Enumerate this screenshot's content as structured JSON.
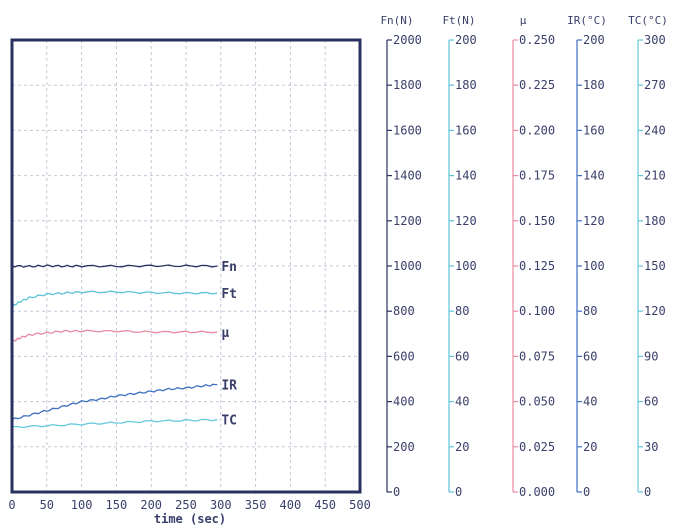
{
  "chart_data": {
    "type": "line",
    "xlabel": "time (sec)",
    "xlim": [
      0,
      500
    ],
    "x_ticks": [
      "0",
      "50",
      "100",
      "150",
      "200",
      "250",
      "300",
      "350",
      "400",
      "450",
      "500"
    ],
    "grid": true,
    "axes": [
      {
        "id": "fn",
        "header": "Fn(N)",
        "color": "#2a3060",
        "range": [
          0,
          2000
        ],
        "ticks": [
          "0",
          "200",
          "400",
          "600",
          "800",
          "1000",
          "1200",
          "1400",
          "1600",
          "1800",
          "2000"
        ]
      },
      {
        "id": "ft",
        "header": "Ft(N)",
        "color": "#5fc3d8",
        "range": [
          0,
          200
        ],
        "ticks": [
          "0",
          "20",
          "40",
          "60",
          "80",
          "100",
          "120",
          "140",
          "160",
          "180",
          "200"
        ]
      },
      {
        "id": "mu",
        "header": "μ",
        "color": "#e88ba2",
        "range": [
          0,
          0.25
        ],
        "ticks": [
          "0.000",
          "0.025",
          "0.050",
          "0.075",
          "0.100",
          "0.125",
          "0.150",
          "0.175",
          "0.200",
          "0.225",
          "0.250"
        ]
      },
      {
        "id": "ir",
        "header": "IR(°C)",
        "color": "#3c6fc0",
        "range": [
          0,
          200
        ],
        "ticks": [
          "0",
          "20",
          "40",
          "60",
          "80",
          "100",
          "120",
          "140",
          "160",
          "180",
          "200"
        ]
      },
      {
        "id": "tc",
        "header": "TC(°C)",
        "color": "#66c8dc",
        "range": [
          0,
          300
        ],
        "ticks": [
          "0",
          "30",
          "60",
          "90",
          "120",
          "150",
          "180",
          "210",
          "240",
          "270",
          "300"
        ]
      }
    ],
    "series": [
      {
        "name": "Fn",
        "axis": "fn",
        "color": "#2a3060",
        "x": [
          0,
          25,
          50,
          75,
          100,
          150,
          200,
          250,
          295
        ],
        "values": [
          1000,
          998,
          1001,
          999,
          1000,
          999,
          1001,
          1000,
          1000
        ]
      },
      {
        "name": "Ft",
        "axis": "ft",
        "color": "#5fc3d8",
        "x": [
          0,
          10,
          25,
          50,
          75,
          100,
          150,
          200,
          250,
          295
        ],
        "values": [
          82,
          84,
          86,
          87.5,
          88,
          88.5,
          88.5,
          88.2,
          88,
          88
        ]
      },
      {
        "name": "μ",
        "axis": "mu",
        "color": "#e88ba2",
        "x": [
          0,
          10,
          25,
          50,
          75,
          100,
          150,
          200,
          250,
          295
        ],
        "values": [
          0.083,
          0.085,
          0.087,
          0.088,
          0.089,
          0.089,
          0.089,
          0.0885,
          0.0885,
          0.0885
        ]
      },
      {
        "name": "IR",
        "axis": "ir",
        "color": "#3c6fc0",
        "x": [
          0,
          25,
          50,
          75,
          100,
          125,
          150,
          175,
          200,
          225,
          250,
          275,
          295
        ],
        "values": [
          32,
          34,
          36,
          38,
          40,
          41,
          42.5,
          43.5,
          44.5,
          45.5,
          46,
          47,
          47.5
        ]
      },
      {
        "name": "TC",
        "axis": "tc",
        "color": "#66c8dc",
        "x": [
          0,
          50,
          100,
          150,
          200,
          250,
          295
        ],
        "values": [
          43,
          44,
          45,
          46,
          47,
          47.5,
          48
        ]
      }
    ]
  }
}
